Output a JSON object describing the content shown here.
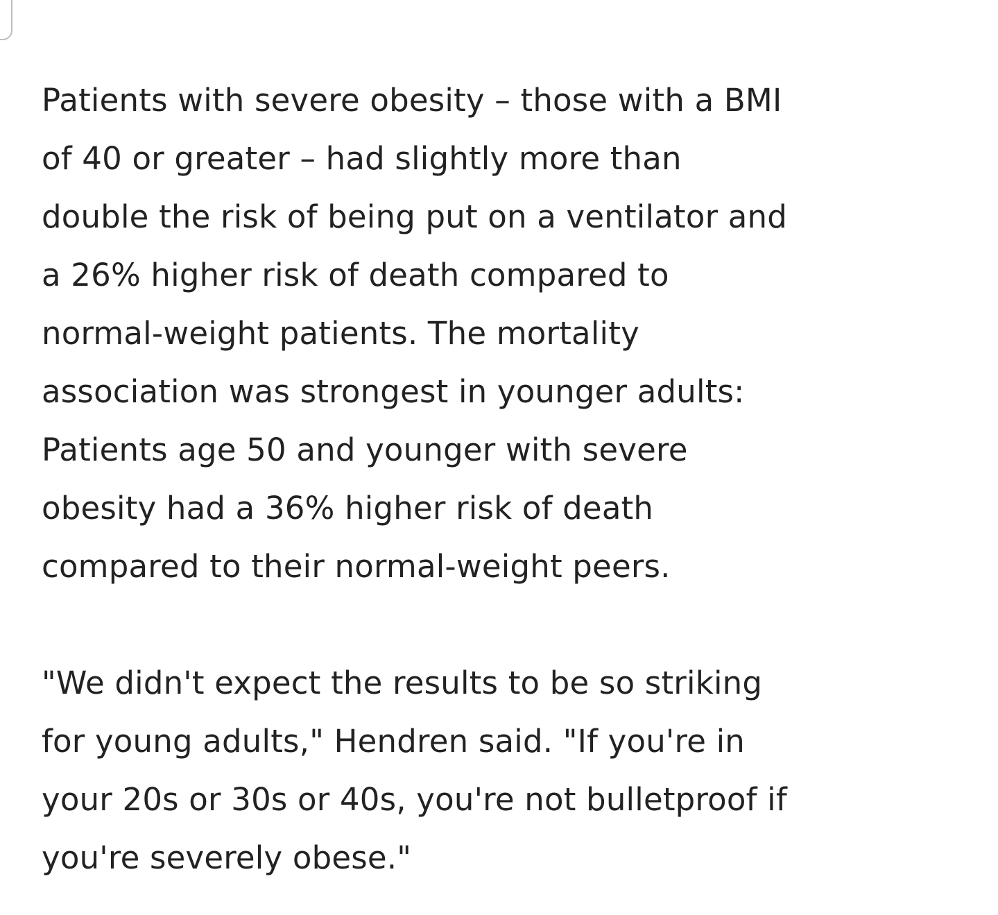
{
  "paragraphs": [
    {
      "lines": [
        "Patients with severe obesity – those with a BMI",
        "of 40 or greater – had slightly more than",
        "double the risk of being put on a ventilator and",
        "a 26% higher risk of death compared to",
        "normal-weight patients. The mortality",
        "association was strongest in younger adults:",
        "Patients age 50 and younger with severe",
        "obesity had a 36% higher risk of death",
        "compared to their normal-weight peers."
      ]
    },
    {
      "lines": [
        "\"We didn't expect the results to be so striking",
        "for young adults,\" Hendren said. \"If you're in",
        "your 20s or 30s or 40s, you're not bulletproof if",
        "you're severely obese.\""
      ]
    }
  ]
}
